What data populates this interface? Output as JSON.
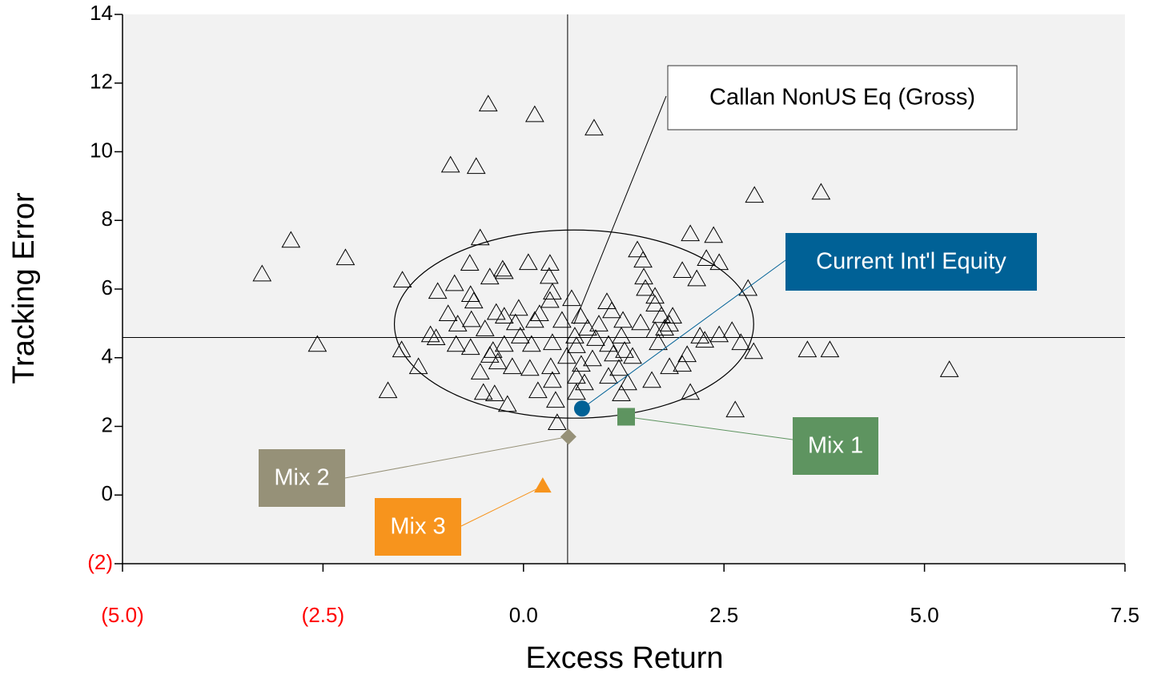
{
  "chart_data": {
    "type": "scatter",
    "x_label": "Excess Return",
    "y_label": "Tracking Error",
    "xlim": [
      -5.0,
      7.5
    ],
    "ylim": [
      -2,
      14
    ],
    "xticks": [
      {
        "value": -5.0,
        "label": "(5.0)"
      },
      {
        "value": -2.5,
        "label": "(2.5)"
      },
      {
        "value": 0.0,
        "label": "0.0"
      },
      {
        "value": 2.5,
        "label": "2.5"
      },
      {
        "value": 5.0,
        "label": "5.0"
      },
      {
        "value": 7.5,
        "label": "7.5"
      }
    ],
    "yticks": [
      {
        "value": -2,
        "label": "(2)"
      },
      0,
      2,
      4,
      6,
      8,
      10,
      12,
      14
    ],
    "negative_tick_color": "#ff0000",
    "plot_background": "#f2f2f2",
    "ref_lines": {
      "x": 0.55,
      "y": 4.59
    },
    "ellipse": {
      "cx": 0.63,
      "cy": 4.98,
      "rx": 2.24,
      "ry": 2.74
    },
    "series": [
      {
        "name": "Callan NonUS Eq (Gross)",
        "marker": "triangle-open",
        "color": "#000000",
        "x": [
          -0.44,
          0.14,
          0.88,
          -0.91,
          -0.59,
          2.88,
          3.71,
          -2.9,
          -3.26,
          -2.22,
          2.08,
          2.37,
          -0.54,
          1.42,
          1.49,
          2.28,
          2.44,
          -0.67,
          -0.26,
          -0.24,
          0.06,
          0.33,
          -1.51,
          -1.07,
          -0.86,
          -0.42,
          0.32,
          1.5,
          1.98,
          2.16,
          2.8,
          0.33,
          0.36,
          0.6,
          1.04,
          1.1,
          1.52,
          1.64,
          1.64,
          -0.66,
          -0.62,
          -0.34,
          -0.06,
          0.2,
          -0.94,
          -0.82,
          -0.65,
          -0.24,
          -0.1,
          0.14,
          0.48,
          0.71,
          0.8,
          0.94,
          1.24,
          1.46,
          1.72,
          1.86,
          1.82,
          1.64,
          1.76,
          2.2,
          2.26,
          2.44,
          2.6,
          2.71,
          2.87,
          -1.09,
          -1.16,
          -0.84,
          -0.48,
          -0.38,
          -0.24,
          -0.04,
          0.1,
          0.36,
          0.64,
          0.66,
          0.9,
          1.06,
          1.22,
          1.26,
          1.36,
          1.68,
          2.04,
          1.98,
          -2.57,
          -1.52,
          -1.31,
          -0.66,
          -0.42,
          -0.32,
          -0.14,
          0.08,
          0.34,
          0.54,
          0.72,
          0.86,
          1.12,
          1.19,
          1.82,
          -0.54,
          -0.5,
          -0.36,
          -0.2,
          0.18,
          0.36,
          0.4,
          0.66,
          0.76,
          0.66,
          1.06,
          1.22,
          1.3,
          1.6,
          2.08,
          -1.69,
          0.42,
          2.64,
          3.54,
          3.82,
          5.31
        ],
        "y": [
          11.38,
          11.07,
          10.68,
          9.6,
          9.56,
          8.72,
          8.81,
          7.41,
          6.43,
          6.9,
          7.6,
          7.55,
          7.48,
          7.13,
          6.83,
          6.88,
          6.76,
          6.74,
          6.57,
          6.5,
          6.76,
          6.74,
          6.25,
          5.92,
          6.15,
          6.34,
          6.36,
          6.34,
          6.53,
          6.29,
          6.01,
          5.66,
          5.9,
          5.71,
          5.62,
          5.36,
          6.01,
          5.78,
          5.55,
          5.83,
          5.64,
          5.31,
          5.43,
          5.27,
          5.27,
          4.97,
          5.1,
          5.2,
          5.01,
          5.08,
          5.08,
          5.2,
          4.85,
          4.97,
          5.08,
          5.01,
          5.22,
          5.2,
          4.97,
          4.78,
          4.85,
          4.62,
          4.5,
          4.66,
          4.78,
          4.43,
          4.17,
          4.57,
          4.66,
          4.38,
          4.83,
          4.2,
          4.38,
          4.62,
          4.38,
          4.43,
          4.62,
          4.34,
          4.55,
          4.38,
          4.62,
          4.2,
          4.03,
          4.43,
          4.08,
          3.8,
          4.38,
          4.22,
          3.73,
          4.29,
          4.06,
          3.87,
          3.73,
          3.68,
          3.73,
          4.03,
          3.8,
          3.96,
          4.1,
          3.68,
          3.73,
          3.57,
          2.98,
          2.94,
          2.63,
          3.03,
          3.33,
          2.75,
          3.45,
          3.26,
          2.98,
          3.45,
          2.94,
          3.26,
          3.33,
          2.98,
          3.03,
          2.1,
          2.47,
          4.22,
          4.22,
          3.64
        ]
      },
      {
        "name": "Current Int'l Equity",
        "marker": "circle",
        "color": "#006196",
        "x": [
          0.73
        ],
        "y": [
          2.52
        ]
      },
      {
        "name": "Mix 1",
        "marker": "square",
        "color": "#5e9460",
        "x": [
          1.28
        ],
        "y": [
          2.28
        ]
      },
      {
        "name": "Mix 2",
        "marker": "diamond",
        "color": "#969178",
        "x": [
          0.56
        ],
        "y": [
          1.7
        ]
      },
      {
        "name": "Mix 3",
        "marker": "triangle",
        "color": "#f7941d",
        "x": [
          0.24
        ],
        "y": [
          0.26
        ]
      }
    ]
  }
}
